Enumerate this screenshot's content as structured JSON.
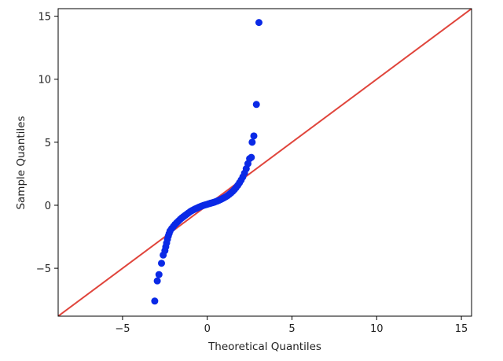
{
  "chart_data": {
    "type": "scatter",
    "title": "",
    "xlabel": "Theoretical Quantiles",
    "ylabel": "Sample Quantiles",
    "xlim": [
      -8.8,
      15.6
    ],
    "ylim": [
      -8.8,
      15.6
    ],
    "grid": false,
    "x_ticks": [
      -5,
      0,
      5,
      10,
      15
    ],
    "x_tick_labels": [
      "−5",
      "0",
      "5",
      "10",
      "15"
    ],
    "y_ticks": [
      -5,
      0,
      5,
      10,
      15
    ],
    "y_tick_labels": [
      "−5",
      "0",
      "5",
      "10",
      "15"
    ],
    "colors": {
      "points": "#0a29e6",
      "reference_line": "#e0453c"
    },
    "reference_line": {
      "type": "45-degree",
      "slope": 1,
      "intercept": 0
    },
    "series": [
      {
        "values": [
          [
            -3.1,
            -7.6
          ],
          [
            -2.95,
            -6.0
          ],
          [
            -2.85,
            -5.5
          ],
          [
            -2.7,
            -4.6
          ],
          [
            -2.6,
            -3.95
          ],
          [
            -2.5,
            -3.6
          ],
          [
            -2.45,
            -3.3
          ],
          [
            -2.4,
            -3.0
          ],
          [
            -2.35,
            -2.7
          ],
          [
            -2.3,
            -2.45
          ],
          [
            -2.25,
            -2.25
          ],
          [
            -2.2,
            -2.05
          ],
          [
            -2.1,
            -1.85
          ],
          [
            -2.0,
            -1.68
          ],
          [
            -1.9,
            -1.52
          ],
          [
            -1.8,
            -1.38
          ],
          [
            -1.7,
            -1.25
          ],
          [
            -1.6,
            -1.12
          ],
          [
            -1.5,
            -1.0
          ],
          [
            -1.4,
            -0.9
          ],
          [
            -1.3,
            -0.8
          ],
          [
            -1.2,
            -0.7
          ],
          [
            -1.1,
            -0.6
          ],
          [
            -1.0,
            -0.5
          ],
          [
            -0.9,
            -0.42
          ],
          [
            -0.8,
            -0.35
          ],
          [
            -0.7,
            -0.28
          ],
          [
            -0.6,
            -0.22
          ],
          [
            -0.5,
            -0.16
          ],
          [
            -0.4,
            -0.1
          ],
          [
            -0.3,
            -0.05
          ],
          [
            -0.2,
            0.0
          ],
          [
            -0.1,
            0.04
          ],
          [
            0.0,
            0.08
          ],
          [
            0.1,
            0.12
          ],
          [
            0.2,
            0.16
          ],
          [
            0.3,
            0.2
          ],
          [
            0.4,
            0.24
          ],
          [
            0.5,
            0.29
          ],
          [
            0.6,
            0.34
          ],
          [
            0.7,
            0.4
          ],
          [
            0.8,
            0.46
          ],
          [
            0.9,
            0.53
          ],
          [
            1.0,
            0.6
          ],
          [
            1.1,
            0.68
          ],
          [
            1.2,
            0.77
          ],
          [
            1.3,
            0.87
          ],
          [
            1.4,
            0.98
          ],
          [
            1.5,
            1.1
          ],
          [
            1.6,
            1.24
          ],
          [
            1.7,
            1.4
          ],
          [
            1.8,
            1.58
          ],
          [
            1.9,
            1.78
          ],
          [
            2.0,
            2.0
          ],
          [
            2.1,
            2.25
          ],
          [
            2.2,
            2.55
          ],
          [
            2.3,
            2.9
          ],
          [
            2.4,
            3.3
          ],
          [
            2.5,
            3.7
          ],
          [
            2.6,
            3.8
          ],
          [
            2.65,
            5.0
          ],
          [
            2.75,
            5.5
          ],
          [
            2.9,
            8.0
          ],
          [
            3.05,
            14.5
          ]
        ]
      }
    ]
  }
}
